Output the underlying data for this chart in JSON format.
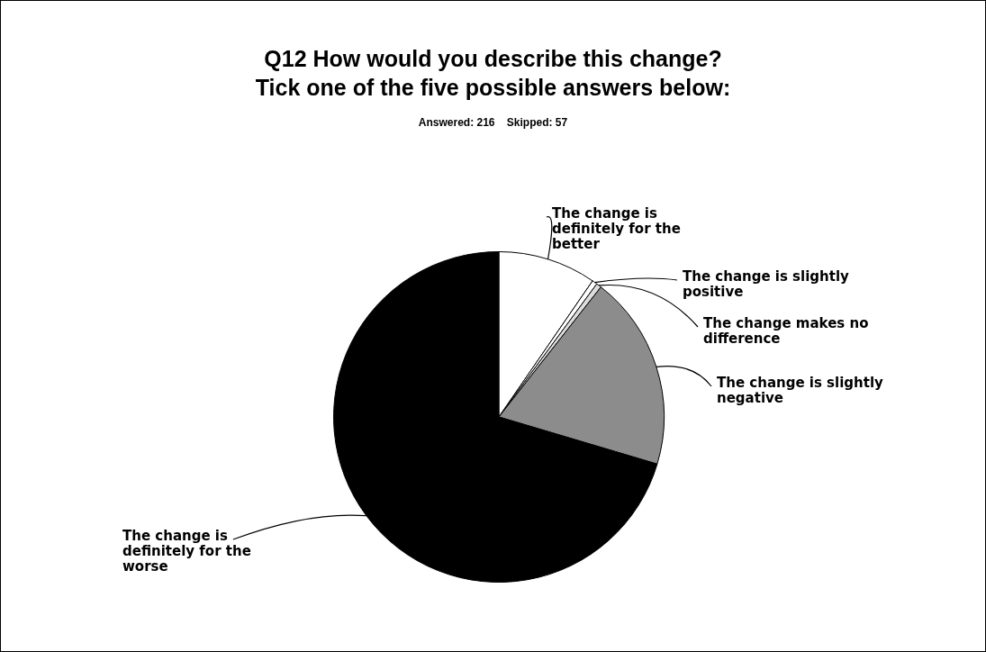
{
  "chart_data": {
    "type": "pie",
    "title": "Q12 How would you describe this change?\nTick one of the five possible answers below:",
    "subtitle": "Answered: 216    Skipped: 57",
    "categories": [
      "The change is definitely for the better",
      "The change is slightly positive",
      "The change makes no difference",
      "The change is slightly negative",
      "The change is definitely for the worse"
    ],
    "values": [
      9.6,
      0.5,
      0.5,
      19.0,
      70.4
    ],
    "colors": [
      "#ffffff",
      "#ffffff",
      "#dddddd",
      "#8c8c8c",
      "#000000"
    ],
    "legend": false
  }
}
